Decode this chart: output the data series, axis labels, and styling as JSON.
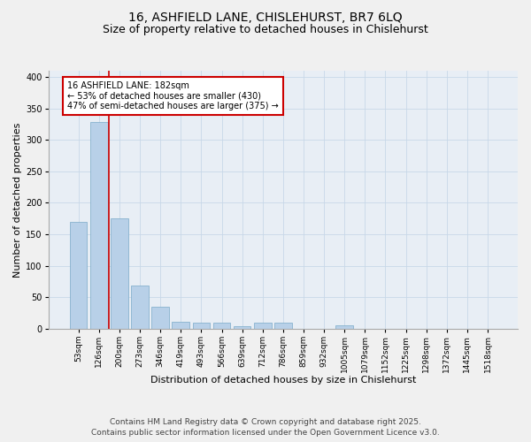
{
  "title_line1": "16, ASHFIELD LANE, CHISLEHURST, BR7 6LQ",
  "title_line2": "Size of property relative to detached houses in Chislehurst",
  "xlabel": "Distribution of detached houses by size in Chislehurst",
  "ylabel": "Number of detached properties",
  "categories": [
    "53sqm",
    "126sqm",
    "200sqm",
    "273sqm",
    "346sqm",
    "419sqm",
    "493sqm",
    "566sqm",
    "639sqm",
    "712sqm",
    "786sqm",
    "859sqm",
    "932sqm",
    "1005sqm",
    "1079sqm",
    "1152sqm",
    "1225sqm",
    "1298sqm",
    "1372sqm",
    "1445sqm",
    "1518sqm"
  ],
  "values": [
    170,
    328,
    175,
    68,
    35,
    11,
    10,
    9,
    4,
    10,
    10,
    0,
    0,
    5,
    0,
    0,
    0,
    0,
    0,
    0,
    0
  ],
  "bar_color": "#b8d0e8",
  "bar_edge_color": "#7aaac8",
  "property_line_x": 1.5,
  "annotation_text": "16 ASHFIELD LANE: 182sqm\n← 53% of detached houses are smaller (430)\n47% of semi-detached houses are larger (375) →",
  "annotation_box_color": "#ffffff",
  "annotation_box_edge": "#cc0000",
  "vline_color": "#cc0000",
  "grid_color": "#c8d8e8",
  "background_color": "#e8eef5",
  "fig_background": "#f0f0f0",
  "ylim": [
    0,
    410
  ],
  "yticks": [
    0,
    50,
    100,
    150,
    200,
    250,
    300,
    350,
    400
  ],
  "footer_line1": "Contains HM Land Registry data © Crown copyright and database right 2025.",
  "footer_line2": "Contains public sector information licensed under the Open Government Licence v3.0.",
  "title_fontsize": 10,
  "subtitle_fontsize": 9,
  "tick_fontsize": 6.5,
  "label_fontsize": 8,
  "annotation_fontsize": 7,
  "footer_fontsize": 6.5
}
